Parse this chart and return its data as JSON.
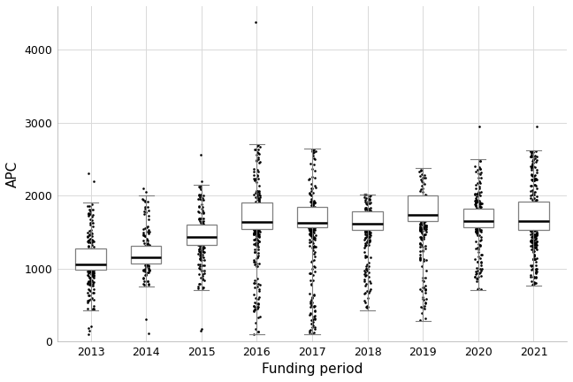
{
  "title": "",
  "xlabel": "Funding period",
  "ylabel": "APC",
  "years": [
    2013,
    2014,
    2015,
    2016,
    2017,
    2018,
    2019,
    2020,
    2021
  ],
  "box_stats": {
    "2013": {
      "whislo": 430,
      "q1": 980,
      "med": 1060,
      "q3": 1270,
      "whishi": 1900
    },
    "2014": {
      "whislo": 750,
      "q1": 1070,
      "med": 1150,
      "q3": 1310,
      "whishi": 2000
    },
    "2015": {
      "whislo": 700,
      "q1": 1320,
      "med": 1430,
      "q3": 1600,
      "whishi": 2150
    },
    "2016": {
      "whislo": 100,
      "q1": 1540,
      "med": 1640,
      "q3": 1900,
      "whishi": 2700
    },
    "2017": {
      "whislo": 100,
      "q1": 1560,
      "med": 1630,
      "q3": 1840,
      "whishi": 2650
    },
    "2018": {
      "whislo": 430,
      "q1": 1530,
      "med": 1610,
      "q3": 1780,
      "whishi": 2020
    },
    "2019": {
      "whislo": 280,
      "q1": 1650,
      "med": 1730,
      "q3": 2000,
      "whishi": 2380
    },
    "2020": {
      "whislo": 700,
      "q1": 1560,
      "med": 1650,
      "q3": 1820,
      "whishi": 2500
    },
    "2021": {
      "whislo": 760,
      "q1": 1530,
      "med": 1650,
      "q3": 1920,
      "whishi": 2620
    }
  },
  "outliers": {
    "2013": [
      100,
      150,
      180,
      200,
      2200,
      2300
    ],
    "2014": [
      110,
      300,
      2050,
      2100
    ],
    "2015": [
      150,
      170,
      2200,
      2560
    ],
    "2016": [
      4380
    ],
    "2017": [],
    "2018": [],
    "2019": [],
    "2020": [
      2950
    ],
    "2021": [
      2950
    ]
  },
  "n_points": {
    "2013": 220,
    "2014": 140,
    "2015": 180,
    "2016": 280,
    "2017": 260,
    "2018": 200,
    "2019": 160,
    "2020": 220,
    "2021": 320
  },
  "ylim": [
    0,
    4600
  ],
  "yticks": [
    0,
    1000,
    2000,
    3000,
    4000
  ],
  "background_color": "#ffffff",
  "grid_color": "#d9d9d9",
  "box_color": "#ffffff",
  "box_edge_color": "#7f7f7f",
  "median_color": "#000000",
  "whisker_color": "#7f7f7f",
  "dot_color": "#000000",
  "dot_size": 3.5,
  "dot_alpha": 1.0,
  "dot_jitter": 0.06,
  "box_width": 0.55,
  "figsize": [
    6.48,
    4.32
  ],
  "dpi": 100
}
